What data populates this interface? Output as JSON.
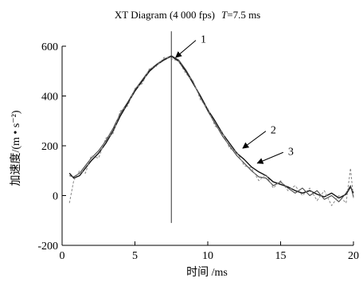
{
  "chart_data": {
    "type": "line",
    "title": "XT Diagram (4 000 fps)",
    "title_annotation": {
      "var": "T",
      "rest": "=7.5 ms"
    },
    "xlabel": "时间 /ms",
    "ylabel": "加速度/(m • s⁻²)",
    "xlim": [
      0,
      20
    ],
    "ylim": [
      -200,
      600
    ],
    "xticks": [
      0,
      5,
      10,
      15,
      20
    ],
    "yticks": [
      -200,
      0,
      200,
      400,
      600
    ],
    "grid": false,
    "vline_x": 7.5,
    "colors": {
      "axis": "#000000",
      "series1": "#111111",
      "series2": "#444444",
      "series3": "#888888"
    },
    "series": [
      {
        "name": "1",
        "x": [
          0.5,
          0.8,
          1.2,
          1.6,
          2.0,
          2.5,
          3.0,
          3.5,
          4.0,
          4.5,
          5.0,
          5.5,
          6.0,
          6.5,
          7.0,
          7.5,
          8.0,
          8.5,
          9.0,
          9.5,
          10.0,
          10.5,
          11.0,
          11.5,
          12.0,
          12.5,
          13.0,
          13.5,
          14.0,
          14.5,
          15.0,
          15.5,
          16.0,
          16.5,
          17.0,
          17.5,
          18.0,
          18.5,
          19.0,
          19.5,
          19.8,
          20.0
        ],
        "y": [
          90,
          70,
          80,
          110,
          140,
          170,
          210,
          260,
          320,
          370,
          420,
          460,
          500,
          525,
          545,
          560,
          540,
          500,
          450,
          400,
          345,
          300,
          250,
          210,
          170,
          145,
          115,
          95,
          80,
          55,
          45,
          35,
          20,
          10,
          20,
          5,
          -5,
          10,
          -10,
          5,
          35,
          10
        ]
      },
      {
        "name": "2",
        "x": [
          0.5,
          0.8,
          1.2,
          1.6,
          2.0,
          2.5,
          3.0,
          3.5,
          4.0,
          4.5,
          5.0,
          5.5,
          6.0,
          6.5,
          7.0,
          7.5,
          8.0,
          8.5,
          9.0,
          9.5,
          10.0,
          10.5,
          11.0,
          11.5,
          12.0,
          12.5,
          13.0,
          13.5,
          14.0,
          14.5,
          15.0,
          15.5,
          16.0,
          16.5,
          17.0,
          17.5,
          18.0,
          18.5,
          19.0,
          19.5,
          19.8,
          20.0
        ],
        "y": [
          80,
          75,
          90,
          120,
          150,
          180,
          220,
          270,
          330,
          375,
          425,
          465,
          505,
          528,
          548,
          562,
          545,
          505,
          455,
          395,
          340,
          290,
          240,
          200,
          160,
          130,
          100,
          75,
          70,
          40,
          55,
          30,
          10,
          30,
          0,
          20,
          -15,
          0,
          -25,
          10,
          40,
          -5
        ]
      },
      {
        "name": "3",
        "x": [
          0.5,
          0.8,
          1.2,
          1.6,
          2.0,
          2.5,
          3.0,
          3.5,
          4.0,
          4.5,
          5.0,
          5.5,
          6.0,
          6.5,
          7.0,
          7.5,
          8.0,
          8.5,
          9.0,
          9.5,
          10.0,
          10.5,
          11.0,
          11.5,
          12.0,
          12.5,
          13.0,
          13.5,
          14.0,
          14.5,
          15.0,
          15.5,
          16.0,
          16.5,
          17.0,
          17.5,
          18.0,
          18.5,
          19.0,
          19.5,
          19.8,
          20.0
        ],
        "y": [
          -30,
          60,
          100,
          90,
          160,
          150,
          230,
          250,
          340,
          360,
          430,
          450,
          510,
          520,
          555,
          550,
          540,
          490,
          460,
          385,
          350,
          280,
          255,
          190,
          175,
          120,
          110,
          60,
          85,
          30,
          60,
          20,
          40,
          0,
          30,
          -20,
          20,
          -40,
          0,
          -30,
          110,
          -10
        ]
      }
    ],
    "annotations": [
      {
        "label": "1",
        "target_series": 0,
        "at_x": 7.8,
        "at_y": 555,
        "text_x": 9.4,
        "text_y": 630
      },
      {
        "label": "2",
        "target_series": 1,
        "at_x": 12.4,
        "at_y": 190,
        "text_x": 14.2,
        "text_y": 265
      },
      {
        "label": "3",
        "target_series": 2,
        "at_x": 13.4,
        "at_y": 130,
        "text_x": 15.4,
        "text_y": 180
      }
    ]
  }
}
